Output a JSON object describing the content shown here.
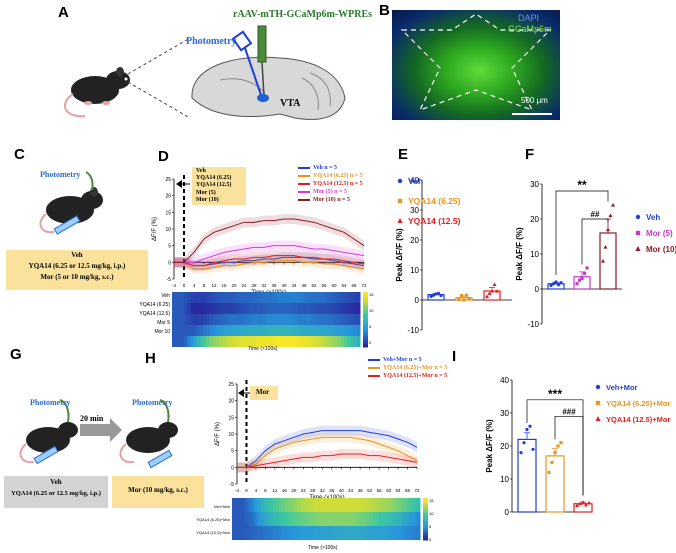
{
  "panels": {
    "A": "A",
    "B": "B",
    "C": "C",
    "D": "D",
    "E": "E",
    "F": "F",
    "G": "G",
    "H": "H",
    "I": "I"
  },
  "panelA": {
    "virus": "rAAV-mTH-GCaMp6m-WPREs",
    "photometry": "Photometry",
    "vta": "VTA"
  },
  "panelB": {
    "dapi": "DAPI",
    "gcamp": "GCaMp6m",
    "scale": "500 μm"
  },
  "panelC": {
    "photometry": "Photometry",
    "veh": "Veh",
    "yqa": "YQA14 (6.25 or 12.5 mg/kg, i.p.)",
    "mor": "Mor (5 or 10 mg/kg, s.c.)"
  },
  "panelD": {
    "boxLines": [
      "Veh",
      "YQA14 (6.25)",
      "YQA14 (12.5)",
      "Mor (5)",
      "Mor (10)"
    ],
    "ylabel": "ΔF/F (%)",
    "xlabel": "Time (×100s)",
    "heatXlabel": "Time (×100s)",
    "heatRows": [
      "Veh",
      "YQA14 (6.25)",
      "YQA14 (12.5)",
      "Mor 5",
      "Mor 10"
    ],
    "colorbarTicks": [
      "15",
      "10",
      "5",
      "0"
    ]
  },
  "panelG": {
    "photometry1": "Photometry",
    "photometry2": "Photometry",
    "interval": "20 min",
    "veh": "Veh",
    "yqa": "YQA14 (6.25 or 12.5 mg/kg, i.p.)",
    "mor": "Mor (10 mg/kg, s.c.)"
  },
  "panelH": {
    "box": "Mor",
    "ylabel": "ΔF/F (%)",
    "xlabel": "Time (×100s)",
    "heatXlabel": "Time (×100s)",
    "heatRows": [
      "Veh+Mor",
      "YQA14 (6.25)+Mor",
      "YQA14 (12.5)+Mor"
    ],
    "colorbarTicks": [
      "15",
      "10",
      "5",
      "0"
    ]
  },
  "colors": {
    "veh": "#1f3fd6",
    "yqa625": "#e8961e",
    "yqa125": "#e02020",
    "mor5": "#d63ad6",
    "mor10": "#8b1a2a",
    "box": "#fbe29c"
  },
  "chart_data": [
    {
      "id": "D",
      "type": "line",
      "ylabel": "ΔF/F (%)",
      "xlabel": "Time (×100s)",
      "ylim": [
        -5,
        25
      ],
      "xlim": [
        -4,
        72
      ],
      "yticks": [
        -5,
        0,
        5,
        10,
        15,
        20,
        25
      ],
      "xticks": [
        -4,
        0,
        4,
        8,
        12,
        16,
        20,
        24,
        28,
        32,
        36,
        40,
        44,
        48,
        52,
        56,
        60,
        64,
        68,
        72
      ],
      "series": [
        {
          "name": "Veh n = 5",
          "color": "#1f3fd6",
          "x": [
            -4,
            0,
            4,
            8,
            12,
            16,
            20,
            24,
            28,
            32,
            36,
            40,
            44,
            48,
            52,
            56,
            60,
            64,
            68,
            72
          ],
          "y": [
            0,
            0,
            -1,
            -1,
            -0.5,
            0,
            0,
            0.5,
            0.5,
            1,
            1,
            1.5,
            1.5,
            1.5,
            1,
            1,
            0.5,
            0,
            -0.5,
            -1
          ]
        },
        {
          "name": "YQA14 (6.25) n = 5",
          "color": "#e8961e",
          "x": [
            -4,
            0,
            4,
            8,
            12,
            16,
            20,
            24,
            28,
            32,
            36,
            40,
            44,
            48,
            52,
            56,
            60,
            64,
            68,
            72
          ],
          "y": [
            0,
            0,
            -2,
            -2,
            -1.5,
            -1,
            -1,
            -0.5,
            0,
            0,
            0.5,
            0.5,
            0.5,
            0,
            0,
            -0.5,
            -0.5,
            -1,
            -1.5,
            -2
          ]
        },
        {
          "name": "YQA14 (12.5) n = 5",
          "color": "#e02020",
          "x": [
            -4,
            0,
            4,
            8,
            12,
            16,
            20,
            24,
            28,
            32,
            36,
            40,
            44,
            48,
            52,
            56,
            60,
            64,
            68,
            72
          ],
          "y": [
            0,
            0,
            -1,
            -1,
            0,
            0.5,
            1,
            1,
            1.5,
            1.5,
            2,
            2,
            2,
            1.5,
            1.5,
            1,
            1,
            0.5,
            0,
            -0.5
          ]
        },
        {
          "name": "Mor (5) n = 5",
          "color": "#d63ad6",
          "x": [
            -4,
            0,
            4,
            8,
            12,
            16,
            20,
            24,
            28,
            32,
            36,
            40,
            44,
            48,
            52,
            56,
            60,
            64,
            68,
            72
          ],
          "y": [
            0,
            0,
            0,
            1,
            2,
            3,
            3.5,
            4,
            4.5,
            4.5,
            5,
            5,
            5,
            4.5,
            4,
            4,
            3.5,
            3,
            2.5,
            2
          ]
        },
        {
          "name": "Mor (10) n = 5",
          "color": "#8b1a2a",
          "x": [
            -4,
            0,
            4,
            8,
            12,
            16,
            20,
            24,
            28,
            32,
            36,
            40,
            44,
            48,
            52,
            56,
            60,
            64,
            68,
            72
          ],
          "y": [
            0,
            0,
            3,
            7,
            9,
            10,
            11,
            12,
            12,
            12.5,
            12.5,
            13,
            13,
            12.5,
            12,
            11,
            10,
            9,
            7,
            5
          ]
        }
      ]
    },
    {
      "id": "E",
      "type": "bar",
      "ylabel": "Peak ΔF/F (%)",
      "ylim": [
        -10,
        40
      ],
      "yticks": [
        -10,
        0,
        10,
        20,
        30,
        40
      ],
      "series": [
        {
          "name": "Veh",
          "color": "#1f3fd6",
          "value": 1.8,
          "err": 0.4,
          "points": [
            1.2,
            1.6,
            2.0,
            2.2,
            1.5
          ]
        },
        {
          "name": "YQA14 (6.25)",
          "color": "#e8961e",
          "value": 0.8,
          "err": 0.6,
          "points": [
            0.2,
            1.5,
            0.0,
            1.6,
            0.5
          ]
        },
        {
          "name": "YQA14 (12.5)",
          "color": "#e02020",
          "value": 3.0,
          "err": 1.2,
          "points": [
            1.2,
            2.2,
            3.0,
            5.2,
            3.0
          ]
        }
      ]
    },
    {
      "id": "F",
      "type": "bar",
      "ylabel": "Peak ΔF/F (%)",
      "ylim": [
        -10,
        30
      ],
      "yticks": [
        -10,
        0,
        10,
        20,
        30
      ],
      "annotations": [
        "**",
        "##"
      ],
      "series": [
        {
          "name": "Veh",
          "color": "#1f3fd6",
          "value": 1.5,
          "err": 0.4,
          "points": [
            1.0,
            1.5,
            2.0,
            1.2,
            1.8
          ]
        },
        {
          "name": "Mor (5)",
          "color": "#c53ac6",
          "value": 3.5,
          "err": 1.4,
          "points": [
            1.5,
            2.5,
            3.0,
            4.5,
            6.0
          ]
        },
        {
          "name": "Mor (10)",
          "color": "#8b1a2a",
          "value": 16,
          "err": 4,
          "points": [
            8,
            12,
            17,
            21,
            24
          ]
        }
      ]
    },
    {
      "id": "H",
      "type": "line",
      "ylabel": "ΔF/F (%)",
      "xlabel": "Time (×100s)",
      "ylim": [
        -5,
        25
      ],
      "xlim": [
        -4,
        72
      ],
      "yticks": [
        -5,
        0,
        5,
        10,
        15,
        20,
        25
      ],
      "xticks": [
        -4,
        0,
        4,
        8,
        12,
        16,
        20,
        24,
        28,
        32,
        36,
        40,
        44,
        48,
        52,
        56,
        60,
        64,
        68,
        72
      ],
      "series": [
        {
          "name": "Veh+Mor n = 5",
          "color": "#1f3fd6",
          "x": [
            -4,
            0,
            4,
            8,
            12,
            16,
            20,
            24,
            28,
            32,
            36,
            40,
            44,
            48,
            52,
            56,
            60,
            64,
            68,
            72
          ],
          "y": [
            0,
            0,
            2,
            5,
            7,
            8,
            9,
            10,
            10.5,
            11,
            11,
            11,
            11,
            11,
            10.5,
            10,
            9.5,
            8.5,
            7.5,
            6
          ]
        },
        {
          "name": "YQA14 (6.25)+Mor n = 5",
          "color": "#e8961e",
          "x": [
            -4,
            0,
            4,
            8,
            12,
            16,
            20,
            24,
            28,
            32,
            36,
            40,
            44,
            48,
            52,
            56,
            60,
            64,
            68,
            72
          ],
          "y": [
            0,
            0,
            1,
            3.5,
            5.5,
            6.5,
            7.5,
            8,
            8.5,
            9,
            9,
            9,
            9,
            8.5,
            8,
            7,
            6,
            5,
            3.5,
            2
          ]
        },
        {
          "name": "YQA14 (12.5)+Mor n = 5",
          "color": "#e02020",
          "x": [
            -4,
            0,
            4,
            8,
            12,
            16,
            20,
            24,
            28,
            32,
            36,
            40,
            44,
            48,
            52,
            56,
            60,
            64,
            68,
            72
          ],
          "y": [
            0,
            0,
            0.5,
            1,
            1.5,
            2,
            2.5,
            3,
            3,
            3.5,
            3.5,
            4,
            4,
            4,
            3.5,
            3.5,
            3,
            2.5,
            2,
            1.5
          ]
        }
      ]
    },
    {
      "id": "I",
      "type": "bar",
      "ylabel": "Peak ΔF/F (%)",
      "ylim": [
        0,
        40
      ],
      "yticks": [
        0,
        10,
        20,
        30,
        40
      ],
      "annotations": [
        "***",
        "###"
      ],
      "series": [
        {
          "name": "Veh+Mor",
          "color": "#1f3fd6",
          "value": 22,
          "err": 2,
          "points": [
            18,
            21,
            25,
            26,
            19
          ]
        },
        {
          "name": "YQA14 (6.25)+Mor",
          "color": "#e8961e",
          "value": 17,
          "err": 2.2,
          "points": [
            12,
            15,
            18,
            20,
            21
          ]
        },
        {
          "name": "YQA14 (12.5)+Mor",
          "color": "#e02020",
          "value": 2.5,
          "err": 0.5,
          "points": [
            2,
            2.5,
            3,
            2.2,
            2.8
          ]
        }
      ]
    }
  ]
}
